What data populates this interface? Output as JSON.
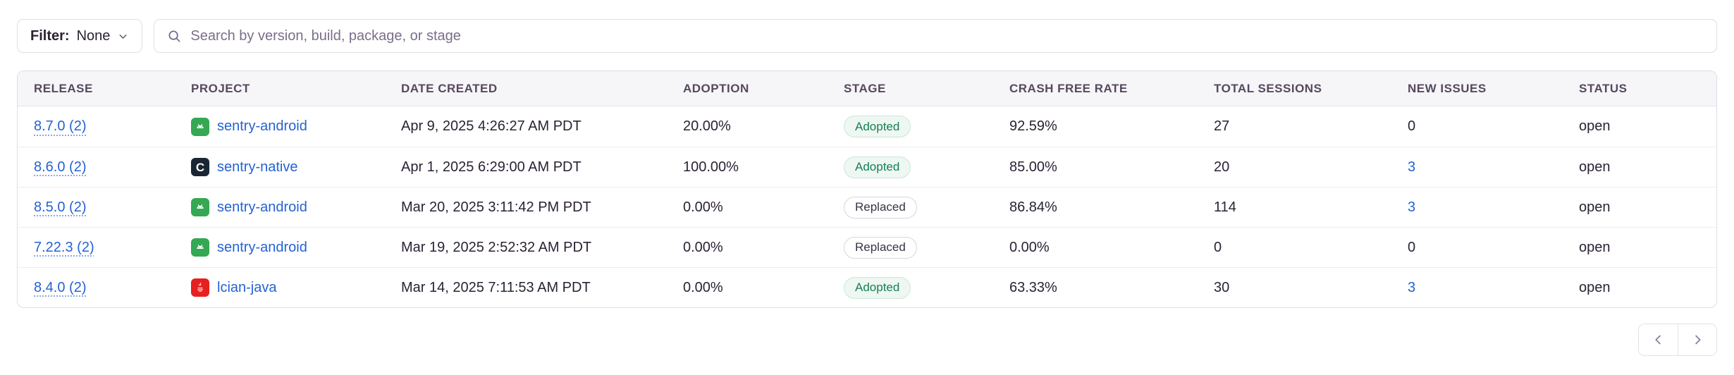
{
  "colors": {
    "link_blue": "#2562d4",
    "adopted_green": "#157f57",
    "android_icon_green": "#34a853",
    "c_icon_navy": "#1a2634",
    "java_icon_red": "#e5201f",
    "header_bg": "#f6f5f8"
  },
  "toolbar": {
    "filter_label": "Filter:",
    "filter_value": "None",
    "search_placeholder": "Search by version, build, package, or stage"
  },
  "table": {
    "columns": [
      "Release",
      "Project",
      "Date Created",
      "Adoption",
      "Stage",
      "Crash Free Rate",
      "Total Sessions",
      "New Issues",
      "Status"
    ],
    "rows": [
      {
        "release": "8.7.0 (2)",
        "project": "sentry-android",
        "platform_icon": "android-icon",
        "date_created": "Apr 9, 2025 4:26:27 AM PDT",
        "adoption": "20.00%",
        "stage": "Adopted",
        "crash_free_rate": "92.59%",
        "total_sessions": "27",
        "new_issues": "0",
        "new_issues_linked": false,
        "status": "open"
      },
      {
        "release": "8.6.0 (2)",
        "project": "sentry-native",
        "platform_icon": "c-icon",
        "date_created": "Apr 1, 2025 6:29:00 AM PDT",
        "adoption": "100.00%",
        "stage": "Adopted",
        "crash_free_rate": "85.00%",
        "total_sessions": "20",
        "new_issues": "3",
        "new_issues_linked": true,
        "status": "open"
      },
      {
        "release": "8.5.0 (2)",
        "project": "sentry-android",
        "platform_icon": "android-icon",
        "date_created": "Mar 20, 2025 3:11:42 PM PDT",
        "adoption": "0.00%",
        "stage": "Replaced",
        "crash_free_rate": "86.84%",
        "total_sessions": "114",
        "new_issues": "3",
        "new_issues_linked": true,
        "status": "open"
      },
      {
        "release": "7.22.3 (2)",
        "project": "sentry-android",
        "platform_icon": "android-icon",
        "date_created": "Mar 19, 2025 2:52:32 AM PDT",
        "adoption": "0.00%",
        "stage": "Replaced",
        "crash_free_rate": "0.00%",
        "total_sessions": "0",
        "new_issues": "0",
        "new_issues_linked": false,
        "status": "open"
      },
      {
        "release": "8.4.0 (2)",
        "project": "lcian-java",
        "platform_icon": "java-icon",
        "date_created": "Mar 14, 2025 7:11:53 AM PDT",
        "adoption": "0.00%",
        "stage": "Adopted",
        "crash_free_rate": "63.33%",
        "total_sessions": "30",
        "new_issues": "3",
        "new_issues_linked": true,
        "status": "open"
      }
    ]
  },
  "pagination": {
    "prev_icon": "chevron-left-icon",
    "next_icon": "chevron-right-icon"
  }
}
